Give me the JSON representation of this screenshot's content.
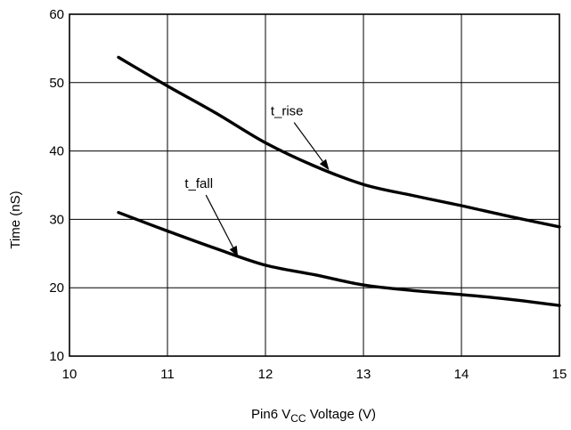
{
  "chart_data": {
    "type": "line",
    "xlabel_prefix": "Pin6 V",
    "xlabel_subscript": "CC",
    "xlabel_suffix": " Voltage (V)",
    "ylabel": "Time (nS)",
    "xlim": [
      10,
      15
    ],
    "ylim": [
      10,
      60
    ],
    "xticks": [
      10,
      11,
      12,
      13,
      14,
      15
    ],
    "yticks": [
      10,
      20,
      30,
      40,
      50,
      60
    ],
    "grid": true,
    "series": [
      {
        "name": "t_rise",
        "x": [
          10.5,
          11.0,
          11.5,
          12.0,
          12.5,
          13.0,
          13.5,
          14.0,
          14.5,
          15.0
        ],
        "y": [
          53.7,
          49.5,
          45.5,
          41.2,
          37.8,
          35.1,
          33.5,
          32.0,
          30.4,
          28.9
        ]
      },
      {
        "name": "t_fall",
        "x": [
          10.5,
          11.0,
          11.5,
          12.0,
          12.5,
          13.0,
          13.5,
          14.0,
          14.5,
          15.0
        ],
        "y": [
          31.0,
          28.3,
          25.7,
          23.3,
          21.9,
          20.4,
          19.6,
          19.0,
          18.3,
          17.4
        ]
      }
    ],
    "annotations": [
      {
        "text": "t_rise",
        "series": "t_rise",
        "label_x": 12.22,
        "label_y": 45.2,
        "point_x": 12.65,
        "point_y": 37.2
      },
      {
        "text": "t_fall",
        "series": "t_fall",
        "label_x": 11.32,
        "label_y": 34.6,
        "point_x": 11.72,
        "point_y": 24.5
      }
    ]
  }
}
